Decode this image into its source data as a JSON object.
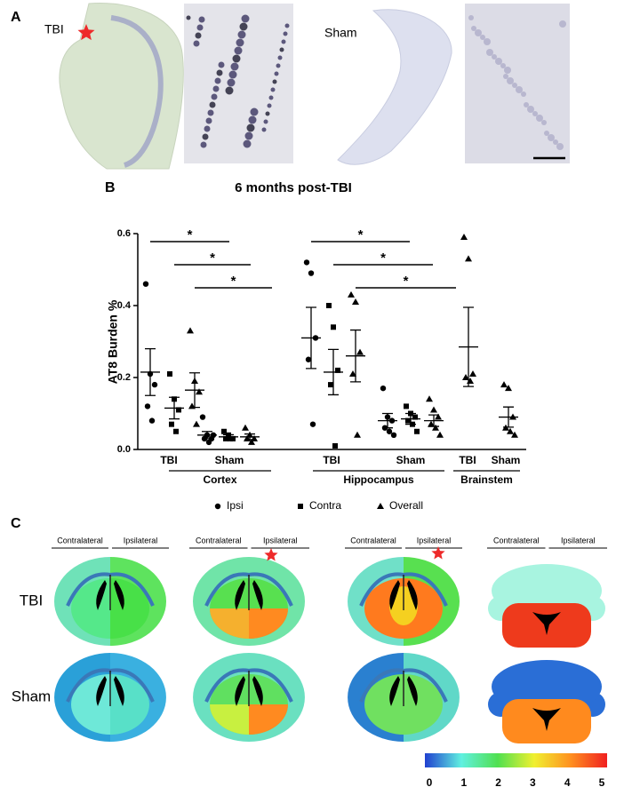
{
  "panel_a": {
    "label": "A",
    "tbi": "TBI",
    "sham": "Sham"
  },
  "panel_b": {
    "label": "B"
  },
  "chart_data": {
    "type": "dotplot",
    "title": "6 months post-TBI",
    "ylabel": "AT8 Burden %",
    "ylim": [
      0,
      0.6
    ],
    "yticks": [
      {
        "value": 0,
        "label": "0.0"
      },
      0.2,
      0.4,
      0.6
    ],
    "series": [
      {
        "name": "Ipsi",
        "marker": "circle",
        "color": "#000000"
      },
      {
        "name": "Contra",
        "marker": "square",
        "color": "#000000"
      },
      {
        "name": "Overall",
        "marker": "triangle",
        "color": "#000000"
      }
    ],
    "regions": [
      {
        "name": "Cortex",
        "comparisons": [
          "*",
          "*",
          "*"
        ],
        "conditions": [
          {
            "name": "TBI",
            "groups": [
              {
                "series": "Ipsi",
                "points": [
                  0.46,
                  0.21,
                  0.18,
                  0.12,
                  0.08
                ],
                "mean": 0.215,
                "sem": 0.065
              },
              {
                "series": "Contra",
                "points": [
                  0.21,
                  0.14,
                  0.11,
                  0.07,
                  0.05
                ],
                "mean": 0.115,
                "sem": 0.03
              },
              {
                "series": "Overall",
                "points": [
                  0.33,
                  0.19,
                  0.16,
                  0.12,
                  0.07
                ],
                "mean": 0.165,
                "sem": 0.048
              }
            ]
          },
          {
            "name": "Sham",
            "groups": [
              {
                "series": "Ipsi",
                "points": [
                  0.09,
                  0.04,
                  0.03,
                  0.03,
                  0.02,
                  0.04
                ],
                "mean": 0.04,
                "sem": 0.01
              },
              {
                "series": "Contra",
                "points": [
                  0.05,
                  0.04,
                  0.03,
                  0.03,
                  0.03
                ],
                "mean": 0.035,
                "sem": 0.006
              },
              {
                "series": "Overall",
                "points": [
                  0.06,
                  0.04,
                  0.03,
                  0.03,
                  0.02
                ],
                "mean": 0.035,
                "sem": 0.008
              }
            ]
          }
        ]
      },
      {
        "name": "Hippocampus",
        "comparisons": [
          "*",
          "*",
          "*"
        ],
        "conditions": [
          {
            "name": "TBI",
            "groups": [
              {
                "series": "Ipsi",
                "points": [
                  0.52,
                  0.49,
                  0.31,
                  0.25,
                  0.07
                ],
                "mean": 0.31,
                "sem": 0.085
              },
              {
                "series": "Contra",
                "points": [
                  0.4,
                  0.34,
                  0.22,
                  0.18,
                  0.01
                ],
                "mean": 0.215,
                "sem": 0.063
              },
              {
                "series": "Overall",
                "points": [
                  0.43,
                  0.41,
                  0.27,
                  0.21,
                  0.04
                ],
                "mean": 0.26,
                "sem": 0.072
              }
            ]
          },
          {
            "name": "Sham",
            "groups": [
              {
                "series": "Ipsi",
                "points": [
                  0.17,
                  0.09,
                  0.08,
                  0.06,
                  0.05,
                  0.04
                ],
                "mean": 0.08,
                "sem": 0.02
              },
              {
                "series": "Contra",
                "points": [
                  0.12,
                  0.1,
                  0.09,
                  0.08,
                  0.07,
                  0.05
                ],
                "mean": 0.085,
                "sem": 0.015
              },
              {
                "series": "Overall",
                "points": [
                  0.14,
                  0.11,
                  0.09,
                  0.07,
                  0.06,
                  0.04
                ],
                "mean": 0.08,
                "sem": 0.016
              }
            ]
          }
        ]
      },
      {
        "name": "Brainstem",
        "comparisons": [],
        "conditions": [
          {
            "name": "TBI",
            "groups": [
              {
                "series": "Overall",
                "points": [
                  0.59,
                  0.53,
                  0.21,
                  0.2,
                  0.19
                ],
                "mean": 0.285,
                "sem": 0.11
              }
            ]
          },
          {
            "name": "Sham",
            "groups": [
              {
                "series": "Overall",
                "points": [
                  0.18,
                  0.17,
                  0.09,
                  0.06,
                  0.05,
                  0.04
                ],
                "mean": 0.09,
                "sem": 0.028
              }
            ]
          }
        ]
      }
    ]
  },
  "panel_c": {
    "label": "C",
    "headers": [
      "Contralateral",
      "Ipsilateral"
    ],
    "rows": [
      "TBI",
      "Sham"
    ],
    "colorbar": {
      "ticks": [
        0,
        1,
        2,
        3,
        4,
        5
      ]
    }
  }
}
